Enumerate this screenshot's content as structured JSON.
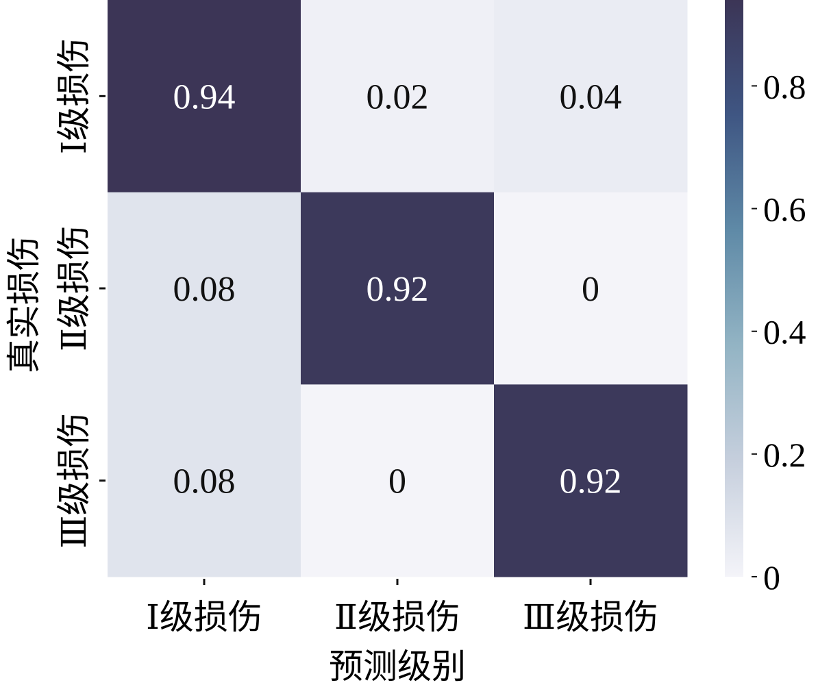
{
  "chart_data": {
    "type": "heatmap",
    "title": "",
    "xlabel": "预测级别",
    "ylabel": "真实损伤",
    "x_categories": [
      "Ⅰ级损伤",
      "Ⅱ级损伤",
      "Ⅲ级损伤"
    ],
    "y_categories": [
      "Ⅰ级损伤",
      "Ⅱ级损伤",
      "Ⅲ级损伤"
    ],
    "values": [
      [
        0.94,
        0.02,
        0.04
      ],
      [
        0.08,
        0.92,
        0
      ],
      [
        0.08,
        0,
        0.92
      ]
    ],
    "value_labels": [
      [
        "0.94",
        "0.02",
        "0.04"
      ],
      [
        "0.08",
        "0.92",
        "0"
      ],
      [
        "0.08",
        "0",
        "0.92"
      ]
    ],
    "colorbar": {
      "range": [
        0,
        0.94
      ],
      "ticks": [
        0,
        0.2,
        0.4,
        0.6,
        0.8
      ],
      "tick_labels": [
        "0",
        "0.2",
        "0.4",
        "0.6",
        "0.8"
      ]
    },
    "colormap": [
      "#f4f4f9",
      "#c6cfdd",
      "#93b4c4",
      "#5f8aa7",
      "#3f5683",
      "#3c3556"
    ]
  }
}
